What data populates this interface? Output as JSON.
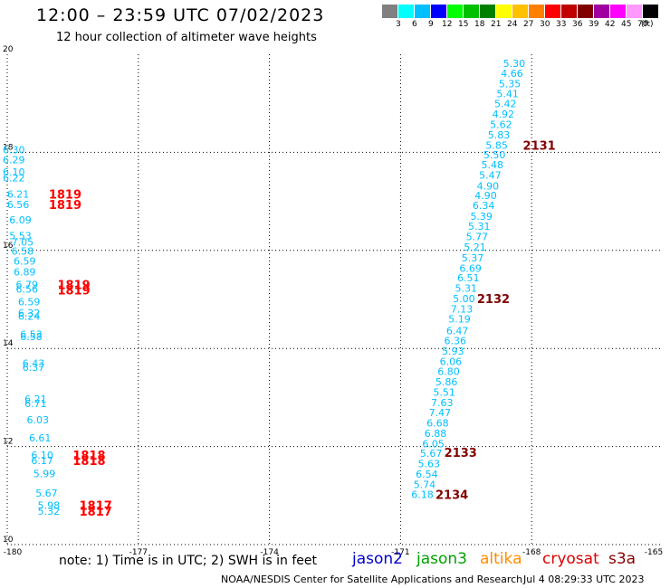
{
  "header": {
    "title": "12:00 – 23:59 UTC 07/02/2023",
    "subtitle": "12 hour collection of altimeter wave heights"
  },
  "legend": {
    "unit": "(ft)",
    "items": [
      {
        "label": "3",
        "color": "#808080"
      },
      {
        "label": "6",
        "color": "#00ffff"
      },
      {
        "label": "9",
        "color": "#00bfff"
      },
      {
        "label": "12",
        "color": "#0000ff"
      },
      {
        "label": "15",
        "color": "#00ff00"
      },
      {
        "label": "18",
        "color": "#00c000"
      },
      {
        "label": "21",
        "color": "#008000"
      },
      {
        "label": "24",
        "color": "#ffff00"
      },
      {
        "label": "27",
        "color": "#ffc000"
      },
      {
        "label": "30",
        "color": "#ff8000"
      },
      {
        "label": "33",
        "color": "#ff0000"
      },
      {
        "label": "36",
        "color": "#c00000"
      },
      {
        "label": "39",
        "color": "#800000"
      },
      {
        "label": "42",
        "color": "#a000a0"
      },
      {
        "label": "45",
        "color": "#ff00ff"
      },
      {
        "label": "70",
        "color": "#ff99ff"
      },
      {
        "label": "",
        "color": "#000000"
      }
    ]
  },
  "chart_data": {
    "type": "scatter",
    "xlim": [
      -180,
      -165
    ],
    "ylim": [
      10,
      20
    ],
    "grid": true,
    "x_ticks": [
      "-180",
      "-177",
      "-174",
      "-171",
      "-168",
      "-165"
    ],
    "y_ticks": [
      "10",
      "12",
      "14",
      "16",
      "18",
      "20"
    ],
    "value_color": "#00bfff",
    "time_color": "#ff0000",
    "time_color_dark": "#800000",
    "series": [
      {
        "points": [
          {
            "x": -168.4,
            "y": 19.82,
            "v": "5.30"
          },
          {
            "x": -168.45,
            "y": 19.61,
            "v": "4.66"
          },
          {
            "x": -168.5,
            "y": 19.4,
            "v": "5.35"
          },
          {
            "x": -168.55,
            "y": 19.2,
            "v": "5.41"
          },
          {
            "x": -168.6,
            "y": 18.99,
            "v": "5.42"
          },
          {
            "x": -168.65,
            "y": 18.78,
            "v": "4.92"
          },
          {
            "x": -168.7,
            "y": 18.57,
            "v": "5.62"
          },
          {
            "x": -168.75,
            "y": 18.36,
            "v": "5.83"
          },
          {
            "x": -168.8,
            "y": 18.15,
            "v": "5.85"
          },
          {
            "x": -168.85,
            "y": 17.95,
            "v": "5.50"
          },
          {
            "x": -168.9,
            "y": 17.75,
            "v": "5.48"
          },
          {
            "x": -168.95,
            "y": 17.54,
            "v": "5.47"
          },
          {
            "x": -169.0,
            "y": 17.32,
            "v": "4.90"
          },
          {
            "x": -169.05,
            "y": 17.12,
            "v": "4.90"
          },
          {
            "x": -169.1,
            "y": 16.92,
            "v": "6.34"
          },
          {
            "x": -169.15,
            "y": 16.7,
            "v": "5.39"
          },
          {
            "x": -169.2,
            "y": 16.49,
            "v": "5.31"
          },
          {
            "x": -169.25,
            "y": 16.28,
            "v": "5.77"
          },
          {
            "x": -169.3,
            "y": 16.07,
            "v": "5.21"
          },
          {
            "x": -169.35,
            "y": 15.85,
            "v": "5.37"
          },
          {
            "x": -169.4,
            "y": 15.64,
            "v": "6.69"
          },
          {
            "x": -169.45,
            "y": 15.44,
            "v": "6.51"
          },
          {
            "x": -169.5,
            "y": 15.23,
            "v": "5.31"
          },
          {
            "x": -169.55,
            "y": 15.02,
            "v": "5.00"
          },
          {
            "x": -169.6,
            "y": 14.81,
            "v": "7.13"
          },
          {
            "x": -169.65,
            "y": 14.6,
            "v": "5.19"
          },
          {
            "x": -169.7,
            "y": 14.36,
            "v": "6.47"
          },
          {
            "x": -169.75,
            "y": 14.16,
            "v": "6.36"
          },
          {
            "x": -169.8,
            "y": 13.95,
            "v": "5.93"
          },
          {
            "x": -169.85,
            "y": 13.74,
            "v": "6.06"
          },
          {
            "x": -169.9,
            "y": 13.53,
            "v": "6.80"
          },
          {
            "x": -169.95,
            "y": 13.32,
            "v": "5.86"
          },
          {
            "x": -170.0,
            "y": 13.11,
            "v": "5.51"
          },
          {
            "x": -170.05,
            "y": 12.9,
            "v": "7.63"
          },
          {
            "x": -170.1,
            "y": 12.69,
            "v": "7.47"
          },
          {
            "x": -170.15,
            "y": 12.48,
            "v": "6.68"
          },
          {
            "x": -170.2,
            "y": 12.27,
            "v": "6.88"
          },
          {
            "x": -170.25,
            "y": 12.06,
            "v": "6.05"
          },
          {
            "x": -170.3,
            "y": 11.86,
            "v": "5.67"
          },
          {
            "x": -170.35,
            "y": 11.65,
            "v": "5.63"
          },
          {
            "x": -170.4,
            "y": 11.44,
            "v": "6.54"
          },
          {
            "x": -170.45,
            "y": 11.23,
            "v": "5.74"
          },
          {
            "x": -170.5,
            "y": 11.02,
            "v": "6.18"
          },
          {
            "x": -179.85,
            "y": 18.05,
            "v": "6.30"
          },
          {
            "x": -179.85,
            "y": 17.85,
            "v": "6.29"
          },
          {
            "x": -179.85,
            "y": 17.6,
            "v": "6.10"
          },
          {
            "x": -179.85,
            "y": 17.48,
            "v": "6.22"
          },
          {
            "x": -179.75,
            "y": 17.15,
            "v": "6.21"
          },
          {
            "x": -179.75,
            "y": 16.94,
            "v": "6.56"
          },
          {
            "x": -179.7,
            "y": 16.62,
            "v": "6.09"
          },
          {
            "x": -179.7,
            "y": 16.3,
            "v": "5.53"
          },
          {
            "x": -179.65,
            "y": 16.17,
            "v": "7.05"
          },
          {
            "x": -179.65,
            "y": 15.99,
            "v": "6.58"
          },
          {
            "x": -179.6,
            "y": 15.78,
            "v": "6.59"
          },
          {
            "x": -179.6,
            "y": 15.56,
            "v": "6.89"
          },
          {
            "x": -179.55,
            "y": 15.3,
            "v": "6.79"
          },
          {
            "x": -179.55,
            "y": 15.21,
            "v": "6.56"
          },
          {
            "x": -179.5,
            "y": 14.95,
            "v": "6.59"
          },
          {
            "x": -179.5,
            "y": 14.72,
            "v": "6.32"
          },
          {
            "x": -179.5,
            "y": 14.66,
            "v": "6.24"
          },
          {
            "x": -179.45,
            "y": 14.29,
            "v": "6.53"
          },
          {
            "x": -179.45,
            "y": 14.24,
            "v": "6.58"
          },
          {
            "x": -179.4,
            "y": 13.7,
            "v": "6.43"
          },
          {
            "x": -179.4,
            "y": 13.62,
            "v": "6.37"
          },
          {
            "x": -179.35,
            "y": 12.97,
            "v": "6.21"
          },
          {
            "x": -179.35,
            "y": 12.88,
            "v": "6.71"
          },
          {
            "x": -179.3,
            "y": 12.55,
            "v": "6.03"
          },
          {
            "x": -179.25,
            "y": 12.18,
            "v": "6.61"
          },
          {
            "x": -179.2,
            "y": 11.83,
            "v": "6.10"
          },
          {
            "x": -179.2,
            "y": 11.72,
            "v": "6.17"
          },
          {
            "x": -179.15,
            "y": 11.45,
            "v": "5.99"
          },
          {
            "x": -179.1,
            "y": 11.05,
            "v": "5.67"
          },
          {
            "x": -179.05,
            "y": 10.8,
            "v": "5.98"
          },
          {
            "x": -179.05,
            "y": 10.68,
            "v": "5.32"
          }
        ]
      }
    ],
    "time_labels": [
      {
        "x": -168.2,
        "y": 18.15,
        "t": "2131",
        "dark": true
      },
      {
        "x": -169.25,
        "y": 15.02,
        "t": "2132",
        "dark": true
      },
      {
        "x": -170.0,
        "y": 11.88,
        "t": "2133",
        "dark": true
      },
      {
        "x": -170.2,
        "y": 11.02,
        "t": "2134",
        "dark": true
      },
      {
        "x": -179.05,
        "y": 17.15,
        "t": "1819",
        "dark": false
      },
      {
        "x": -179.05,
        "y": 16.94,
        "t": "1819",
        "dark": false
      },
      {
        "x": -178.85,
        "y": 15.3,
        "t": "1819",
        "dark": false
      },
      {
        "x": -178.85,
        "y": 15.19,
        "t": "1819",
        "dark": false
      },
      {
        "x": -178.5,
        "y": 11.83,
        "t": "1818",
        "dark": false
      },
      {
        "x": -178.5,
        "y": 11.72,
        "t": "1818",
        "dark": false
      },
      {
        "x": -178.35,
        "y": 10.8,
        "t": "1817",
        "dark": false
      },
      {
        "x": -178.35,
        "y": 10.68,
        "t": "1817",
        "dark": false
      }
    ]
  },
  "footer": {
    "note": "note:  1) Time is in UTC;  2) SWH is in feet",
    "satellites": [
      {
        "name": "jason2",
        "color": "#0000cc"
      },
      {
        "name": "jason3",
        "color": "#00a000"
      },
      {
        "name": "altika",
        "color": "#ff8c00"
      },
      {
        "name": "cryosat",
        "color": "#dd0000"
      },
      {
        "name": "s3a",
        "color": "#880000"
      }
    ],
    "credit": "NOAA/NESDIS Center for Satellite Applications and Research",
    "generated": "Jul  4 08:29:33 UTC 2023"
  }
}
